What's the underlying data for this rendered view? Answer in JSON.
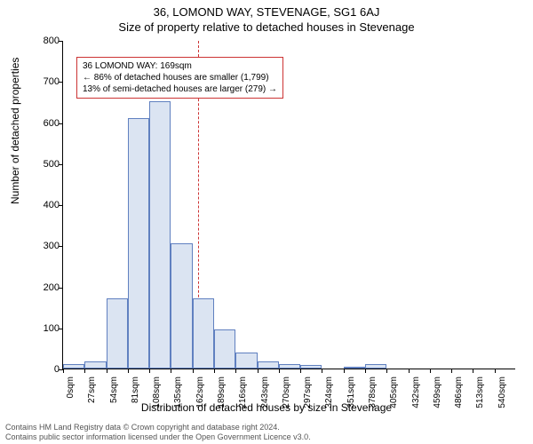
{
  "header": {
    "title": "36, LOMOND WAY, STEVENAGE, SG1 6AJ",
    "subtitle": "Size of property relative to detached houses in Stevenage"
  },
  "chart": {
    "type": "histogram",
    "ylabel": "Number of detached properties",
    "xlabel": "Distribution of detached houses by size in Stevenage",
    "ylim": [
      0,
      800
    ],
    "ytick_step": 100,
    "xtick_step": 27,
    "xtick_unit": "sqm",
    "xtick_count": 21,
    "bar_fill": "#dbe4f2",
    "bar_stroke": "#6080c0",
    "background_color": "#ffffff",
    "axis_color": "#000000",
    "vline_color": "#cc3333",
    "vline_x": 169,
    "xmax_display": 566,
    "values": [
      10,
      18,
      170,
      610,
      650,
      305,
      170,
      95,
      40,
      18,
      10,
      8,
      0,
      5,
      10,
      0,
      0,
      0,
      0,
      0,
      0
    ]
  },
  "annotation": {
    "line1": "36 LOMOND WAY: 169sqm",
    "line2": "← 86% of detached houses are smaller (1,799)",
    "line3": "13% of semi-detached houses are larger (279) →"
  },
  "footer": {
    "line1": "Contains HM Land Registry data © Crown copyright and database right 2024.",
    "line2": "Contains public sector information licensed under the Open Government Licence v3.0."
  }
}
